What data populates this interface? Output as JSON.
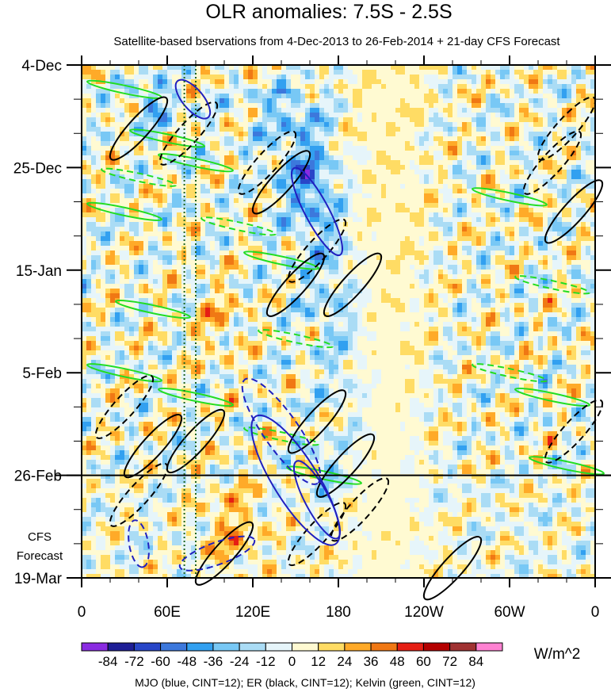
{
  "chart_data": {
    "type": "heatmap",
    "title": "OLR anomalies: 7.5S - 2.5S",
    "subtitle": "Satellite-based bservations from 4-Dec-2013 to 26-Feb-2014 + 21-day CFS Forecast",
    "x_tick_labels": [
      "0",
      "60E",
      "120E",
      "180",
      "120W",
      "60W",
      "0"
    ],
    "x_ticks_deg": [
      0,
      60,
      120,
      180,
      240,
      300,
      360
    ],
    "x_range_deg": [
      0,
      360
    ],
    "y_tick_labels": [
      "4-Dec",
      "25-Dec",
      "15-Jan",
      "5-Feb",
      "26-Feb",
      "19-Mar"
    ],
    "y_ticks_day": [
      0,
      21,
      42,
      63,
      84,
      105
    ],
    "y_range_day": [
      0,
      105
    ],
    "observation_end_day": 84,
    "forecast_label_line1": "CFS",
    "forecast_label_line2": "Forecast",
    "reference_lines_deg": [
      72,
      80
    ],
    "colorbar": {
      "unit": "W/m^2",
      "levels": [
        "-84",
        "-72",
        "-60",
        "-48",
        "-36",
        "-24",
        "-12",
        "0",
        "12",
        "24",
        "36",
        "48",
        "60",
        "72",
        "84"
      ],
      "colors": [
        "#8a2be2",
        "#1e1e96",
        "#2846c8",
        "#3c78dc",
        "#32a0f0",
        "#78c8f5",
        "#aadcf5",
        "#e6f5fa",
        "#fffad2",
        "#ffdc64",
        "#ffaa28",
        "#f07814",
        "#e61e14",
        "#b40000",
        "#a03232",
        "#ff82d2"
      ]
    },
    "footer": "MJO (blue, CINT=12); ER (black, CINT=12); Kelvin (green, CINT=12)",
    "mjo_contour_color": "#2020c0",
    "er_contour_color": "#000000",
    "kelvin_contour_color": "#22dd22"
  }
}
